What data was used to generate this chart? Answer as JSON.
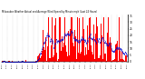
{
  "title": "Milwaukee Weather Actual and Average Wind Speed by Minute mph (Last 24 Hours)",
  "title2": "mph (Last 24 Hours)",
  "bg_color": "#ffffff",
  "bar_color": "#ff0000",
  "line_color": "#0000cc",
  "n_points": 1440,
  "ylim": [
    0,
    36
  ],
  "yticks": [
    0,
    5,
    10,
    15,
    20,
    25,
    30,
    35
  ],
  "seed": 42
}
